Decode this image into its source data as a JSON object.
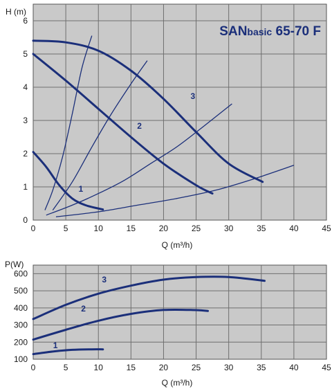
{
  "colors": {
    "plot_bg": "#c9c9c9",
    "grid": "#6e6e6e",
    "curve": "#1b2f7a",
    "frame": "#555555"
  },
  "chart_data": [
    {
      "type": "line",
      "title_parts": [
        "SAN",
        "basic",
        " 65-70 F"
      ],
      "xlabel": "Q (m³/h)",
      "ylabel": "H (m)",
      "xlim": [
        0,
        45
      ],
      "ylim": [
        0,
        6.5
      ],
      "xticks": [
        0,
        5,
        10,
        15,
        20,
        25,
        30,
        35,
        40,
        45
      ],
      "yticks": [
        0,
        1,
        2,
        3,
        4,
        5,
        6
      ],
      "grid": true,
      "series": [
        {
          "name": "1",
          "label_at": [
            7.3,
            0.85
          ],
          "x": [
            0,
            2,
            4,
            6,
            8,
            10,
            10.7
          ],
          "y": [
            2.05,
            1.6,
            1.05,
            0.65,
            0.45,
            0.35,
            0.32
          ]
        },
        {
          "name": "2",
          "label_at": [
            16.3,
            2.75
          ],
          "x": [
            0,
            5,
            10,
            15,
            20,
            25,
            27.5
          ],
          "y": [
            5.0,
            4.2,
            3.35,
            2.5,
            1.7,
            1.05,
            0.8
          ]
        },
        {
          "name": "3",
          "label_at": [
            24.5,
            3.65
          ],
          "x": [
            0,
            5,
            10,
            15,
            20,
            25,
            30,
            35.2
          ],
          "y": [
            5.4,
            5.35,
            5.1,
            4.5,
            3.65,
            2.65,
            1.7,
            1.15
          ]
        }
      ],
      "system_curves": [
        {
          "x": [
            1.8,
            3,
            4.5,
            6,
            7.5,
            9
          ],
          "y": [
            0.3,
            0.9,
            1.9,
            3.2,
            4.6,
            5.55
          ]
        },
        {
          "x": [
            3,
            6,
            9,
            12,
            15,
            17.5
          ],
          "y": [
            0.3,
            1.15,
            2.2,
            3.2,
            4.1,
            4.8
          ]
        },
        {
          "x": [
            2,
            6,
            10,
            14,
            18,
            22,
            26,
            30.5
          ],
          "y": [
            0.15,
            0.45,
            0.8,
            1.2,
            1.7,
            2.2,
            2.8,
            3.5
          ]
        },
        {
          "x": [
            3.5,
            10,
            16,
            22,
            28,
            34,
            40
          ],
          "y": [
            0.1,
            0.25,
            0.45,
            0.65,
            0.9,
            1.25,
            1.65
          ]
        }
      ]
    },
    {
      "type": "line",
      "xlabel": "Q (m³/h)",
      "ylabel": "P(W)",
      "xlim": [
        0,
        45
      ],
      "ylim": [
        100,
        650
      ],
      "xticks": [
        0,
        5,
        10,
        15,
        20,
        25,
        30,
        35,
        40,
        45
      ],
      "yticks": [
        100,
        200,
        300,
        400,
        500,
        600
      ],
      "grid": true,
      "series": [
        {
          "name": "1",
          "label_at": [
            3.4,
            165
          ],
          "x": [
            0,
            3,
            6,
            9,
            10.7
          ],
          "y": [
            130,
            145,
            155,
            158,
            158
          ]
        },
        {
          "name": "2",
          "label_at": [
            7.7,
            380
          ],
          "x": [
            0,
            5,
            10,
            15,
            20,
            25,
            26.8
          ],
          "y": [
            215,
            272,
            325,
            365,
            388,
            387,
            382
          ]
        },
        {
          "name": "3",
          "label_at": [
            10.9,
            548
          ],
          "x": [
            0,
            5,
            10,
            15,
            20,
            25,
            30,
            35.5
          ],
          "y": [
            335,
            418,
            483,
            530,
            565,
            580,
            580,
            558
          ]
        }
      ]
    }
  ]
}
